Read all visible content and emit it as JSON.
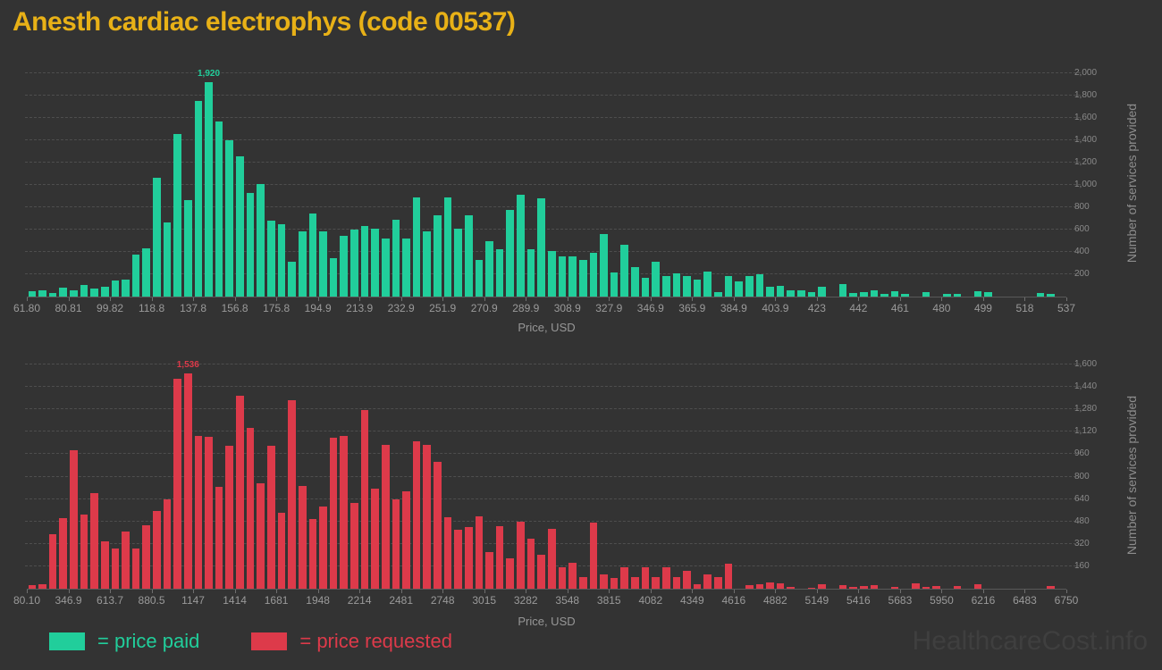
{
  "page": {
    "title": "Anesth cardiac electrophys (code 00537)",
    "watermark": "HealthcareCost.info"
  },
  "legend": {
    "paid_label": "= price paid",
    "requested_label": "= price requested"
  },
  "colors": {
    "background": "#333333",
    "paid": "#21ce9b",
    "requested": "#dd3a4a",
    "title": "#e8b117",
    "axis_text": "#9a9a9a",
    "grid": "#4e4e4e",
    "watermark": "#3f3f3f"
  },
  "chart_data": [
    {
      "type": "bar",
      "series_name": "price paid",
      "color": "#21ce9b",
      "xlabel": "Price, USD",
      "ylabel": "Number of services provided",
      "x_range": [
        61.8,
        537
      ],
      "n_bins": 100,
      "grid": true,
      "y_axis_position": "right",
      "x_tick_labels": [
        "61.80",
        "80.81",
        "99.82",
        "118.8",
        "137.8",
        "156.8",
        "175.8",
        "194.9",
        "213.9",
        "232.9",
        "251.9",
        "270.9",
        "289.9",
        "308.9",
        "327.9",
        "346.9",
        "365.9",
        "384.9",
        "403.9",
        "423",
        "442",
        "461",
        "480",
        "499",
        "518",
        "537"
      ],
      "y_ticks": [
        200,
        400,
        600,
        800,
        1000,
        1200,
        1400,
        1600,
        1800,
        2000
      ],
      "ylim": [
        0,
        2030
      ],
      "peak_label": {
        "index": 17,
        "label": "1,920",
        "value": 1920
      },
      "values": [
        45,
        60,
        35,
        80,
        55,
        105,
        75,
        90,
        140,
        155,
        375,
        430,
        1060,
        665,
        1455,
        865,
        1750,
        1920,
        1565,
        1400,
        1255,
        925,
        1005,
        680,
        650,
        315,
        585,
        745,
        585,
        340,
        545,
        600,
        635,
        610,
        520,
        685,
        520,
        885,
        580,
        730,
        890,
        610,
        725,
        325,
        495,
        420,
        775,
        915,
        425,
        880,
        405,
        360,
        360,
        325,
        395,
        560,
        215,
        465,
        260,
        170,
        315,
        180,
        210,
        180,
        150,
        220,
        40,
        180,
        135,
        180,
        200,
        85,
        100,
        60,
        55,
        40,
        85,
        0,
        110,
        35,
        40,
        60,
        25,
        50,
        28,
        0,
        40,
        0,
        25,
        28,
        0,
        50,
        40,
        0,
        0,
        0,
        0,
        35,
        25,
        0
      ]
    },
    {
      "type": "bar",
      "series_name": "price requested",
      "color": "#dd3a4a",
      "xlabel": "Price, USD",
      "ylabel": "Number of services provided",
      "x_range": [
        80.1,
        6750
      ],
      "n_bins": 100,
      "grid": true,
      "y_axis_position": "right",
      "x_tick_labels": [
        "80.10",
        "346.9",
        "613.7",
        "880.5",
        "1147",
        "1414",
        "1681",
        "1948",
        "2214",
        "2481",
        "2748",
        "3015",
        "3282",
        "3548",
        "3815",
        "4082",
        "4349",
        "4616",
        "4882",
        "5149",
        "5416",
        "5683",
        "5950",
        "6216",
        "6483",
        "6750"
      ],
      "y_ticks": [
        160,
        320,
        480,
        640,
        800,
        960,
        1120,
        1280,
        1440,
        1600
      ],
      "ylim": [
        0,
        1620
      ],
      "peak_label": {
        "index": 15,
        "label": "1,536",
        "value": 1536
      },
      "values": [
        25,
        35,
        390,
        505,
        990,
        530,
        680,
        335,
        285,
        410,
        290,
        455,
        555,
        640,
        1500,
        1536,
        1090,
        1085,
        725,
        1020,
        1375,
        1150,
        750,
        1020,
        540,
        1345,
        735,
        495,
        590,
        1075,
        1090,
        610,
        1275,
        715,
        1025,
        640,
        695,
        1050,
        1025,
        905,
        510,
        420,
        440,
        515,
        260,
        445,
        215,
        480,
        355,
        240,
        430,
        155,
        185,
        85,
        475,
        105,
        75,
        155,
        85,
        150,
        85,
        150,
        80,
        125,
        35,
        105,
        85,
        180,
        0,
        25,
        30,
        45,
        40,
        10,
        0,
        5,
        30,
        0,
        25,
        15,
        20,
        25,
        0,
        10,
        0,
        40,
        15,
        20,
        0,
        20,
        0,
        30,
        0,
        0,
        0,
        0,
        0,
        0,
        20,
        0
      ]
    }
  ]
}
